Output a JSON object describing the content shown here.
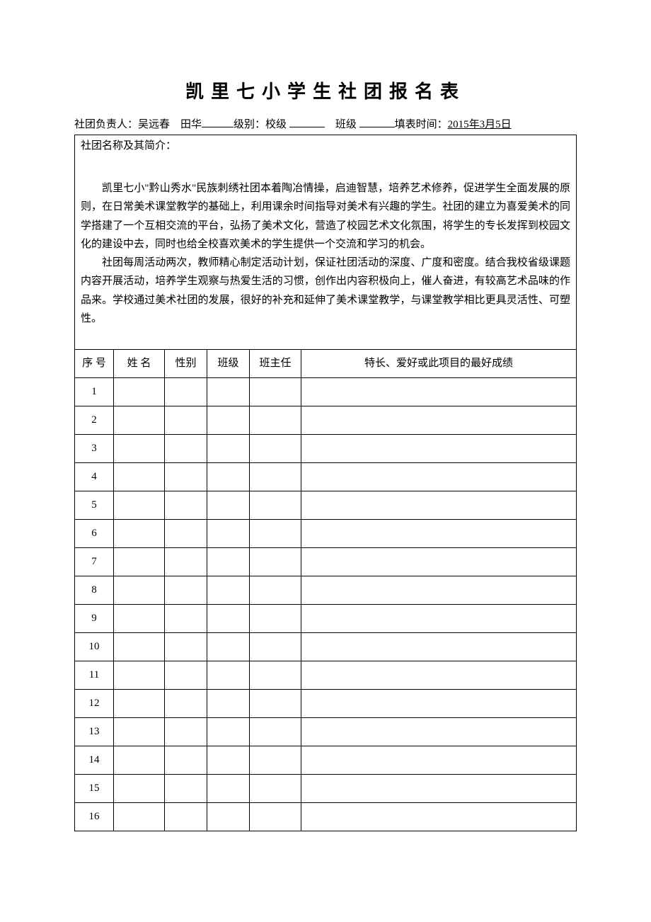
{
  "title": "凯里七小学生社团报名表",
  "meta": {
    "leader_label": "社团负责人：",
    "leader_names": "吴远春　田华",
    "level_label": "级别：校级",
    "class_label": "班级",
    "fill_time_label": "填表时间：",
    "fill_time_value": "2015年3月5日"
  },
  "intro": {
    "label": "社团名称及其简介：",
    "para1": "凯里七小\"黔山秀水\"民族刺绣社团本着陶冶情操，启迪智慧，培养艺术修养，促进学生全面发展的原则，在日常美术课堂教学的基础上，利用课余时间指导对美术有兴趣的学生。社团的建立为喜爱美术的同学搭建了一个互相交流的平台，弘扬了美术文化，营造了校园艺术文化氛围，将学生的专长发挥到校园文化的建设中去，同时也给全校喜欢美术的学生提供一个交流和学习的机会。",
    "para2": "社团每周活动两次，教师精心制定活动计划，保证社团活动的深度、广度和密度。结合我校省级课题内容开展活动，培养学生观察与热爱生活的习惯，创作出内容积极向上，催人奋进，有较高艺术品味的作品来。学校通过美术社团的发展，很好的补充和延伸了美术课堂教学，与课堂教学相比更具灵活性、可塑性。"
  },
  "columns": {
    "seq": "序 号",
    "name": "姓 名",
    "gender": "性别",
    "class": "班级",
    "teacher": "班主任",
    "specialty": "特长、爱好或此项目的最好成绩"
  },
  "rows": [
    {
      "seq": "1",
      "name": "",
      "gender": "",
      "class": "",
      "teacher": "",
      "specialty": ""
    },
    {
      "seq": "2",
      "name": "",
      "gender": "",
      "class": "",
      "teacher": "",
      "specialty": ""
    },
    {
      "seq": "3",
      "name": "",
      "gender": "",
      "class": "",
      "teacher": "",
      "specialty": ""
    },
    {
      "seq": "4",
      "name": "",
      "gender": "",
      "class": "",
      "teacher": "",
      "specialty": ""
    },
    {
      "seq": "5",
      "name": "",
      "gender": "",
      "class": "",
      "teacher": "",
      "specialty": ""
    },
    {
      "seq": "6",
      "name": "",
      "gender": "",
      "class": "",
      "teacher": "",
      "specialty": ""
    },
    {
      "seq": "7",
      "name": "",
      "gender": "",
      "class": "",
      "teacher": "",
      "specialty": ""
    },
    {
      "seq": "8",
      "name": "",
      "gender": "",
      "class": "",
      "teacher": "",
      "specialty": ""
    },
    {
      "seq": "9",
      "name": "",
      "gender": "",
      "class": "",
      "teacher": "",
      "specialty": ""
    },
    {
      "seq": "10",
      "name": "",
      "gender": "",
      "class": "",
      "teacher": "",
      "specialty": ""
    },
    {
      "seq": "11",
      "name": "",
      "gender": "",
      "class": "",
      "teacher": "",
      "specialty": ""
    },
    {
      "seq": "12",
      "name": "",
      "gender": "",
      "class": "",
      "teacher": "",
      "specialty": ""
    },
    {
      "seq": "13",
      "name": "",
      "gender": "",
      "class": "",
      "teacher": "",
      "specialty": ""
    },
    {
      "seq": "14",
      "name": "",
      "gender": "",
      "class": "",
      "teacher": "",
      "specialty": ""
    },
    {
      "seq": "15",
      "name": "",
      "gender": "",
      "class": "",
      "teacher": "",
      "specialty": ""
    },
    {
      "seq": "16",
      "name": "",
      "gender": "",
      "class": "",
      "teacher": "",
      "specialty": ""
    }
  ]
}
